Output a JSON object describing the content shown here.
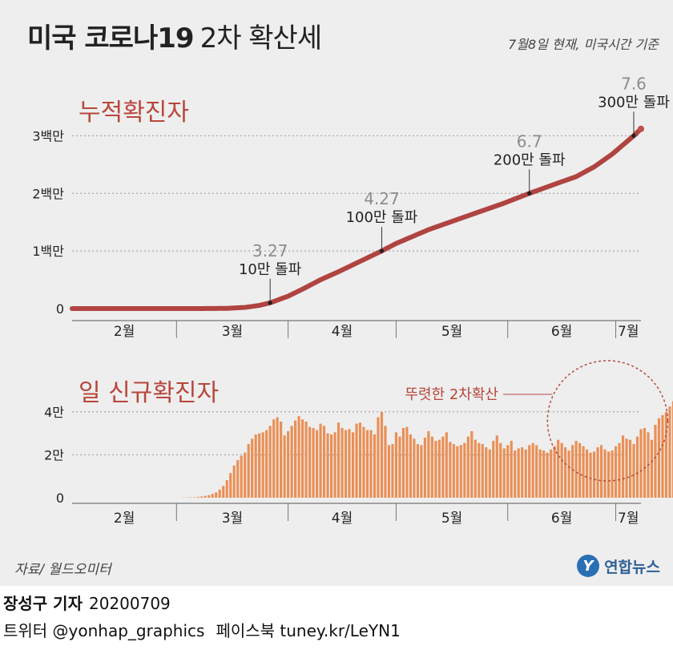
{
  "header": {
    "title_bold": "미국 코로나19",
    "title_light": "2차 확산세",
    "as_of": "7월8일 현재, 미국시간 기준"
  },
  "footer": {
    "source": "자료/ 월드오미터",
    "logo_mark": "Y",
    "logo_text": "연합뉴스",
    "reporter": "장성구 기자",
    "date": "20200709",
    "twitter": "트위터 @yonhap_graphics",
    "facebook": "페이스북 tuney.kr/LeYN1"
  },
  "colors": {
    "cumulative_line": "#c0504d",
    "daily_bars": "#ea8f55",
    "accent_text": "#b8463b",
    "milestone_number": "#8c8c8c",
    "panel_bg": "#eeeeee"
  },
  "chart_data": [
    {
      "type": "line",
      "title": "누적확진자",
      "unit": "명",
      "xlabel": "",
      "ylabel": "",
      "x_ticks": [
        "2월",
        "3월",
        "4월",
        "5월",
        "6월",
        "7월"
      ],
      "y_ticks": [
        {
          "value": 0,
          "label": "0"
        },
        {
          "value": 1000000,
          "label": "1백만"
        },
        {
          "value": 2000000,
          "label": "2백만"
        },
        {
          "value": 3000000,
          "label": "3백만"
        }
      ],
      "ylim": [
        0,
        3200000
      ],
      "x_range": [
        "2020-02-01",
        "2020-07-08"
      ],
      "grid": "horizontal-dashed",
      "milestones": [
        {
          "date": "2020-03-27",
          "value": 100000,
          "label": "10만 돌파",
          "date_label": "3.27"
        },
        {
          "date": "2020-04-27",
          "value": 1000000,
          "label": "100만 돌파",
          "date_label": "4.27"
        },
        {
          "date": "2020-06-07",
          "value": 2000000,
          "label": "200만 돌파",
          "date_label": "6.7"
        },
        {
          "date": "2020-07-06",
          "value": 3000000,
          "label": "300만 돌파",
          "date_label": "7.6"
        }
      ],
      "series": [
        {
          "points": [
            [
              "2020-02-01",
              8
            ],
            [
              "2020-02-15",
              15
            ],
            [
              "2020-03-01",
              80
            ],
            [
              "2020-03-08",
              550
            ],
            [
              "2020-03-15",
              3700
            ],
            [
              "2020-03-20",
              20000
            ],
            [
              "2020-03-24",
              55000
            ],
            [
              "2020-03-27",
              100000
            ],
            [
              "2020-04-01",
              215000
            ],
            [
              "2020-04-05",
              337000
            ],
            [
              "2020-04-10",
              500000
            ],
            [
              "2020-04-15",
              640000
            ],
            [
              "2020-04-20",
              790000
            ],
            [
              "2020-04-27",
              1000000
            ],
            [
              "2020-05-01",
              1130000
            ],
            [
              "2020-05-10",
              1370000
            ],
            [
              "2020-05-20",
              1590000
            ],
            [
              "2020-05-31",
              1830000
            ],
            [
              "2020-06-07",
              2000000
            ],
            [
              "2020-06-15",
              2180000
            ],
            [
              "2020-06-20",
              2290000
            ],
            [
              "2020-06-25",
              2460000
            ],
            [
              "2020-06-30",
              2680000
            ],
            [
              "2020-07-03",
              2840000
            ],
            [
              "2020-07-06",
              3000000
            ],
            [
              "2020-07-08",
              3120000
            ]
          ]
        }
      ]
    },
    {
      "type": "bar",
      "title": "일 신규확진자",
      "unit": "명",
      "xlabel": "",
      "ylabel": "",
      "x_ticks": [
        "2월",
        "3월",
        "4월",
        "5월",
        "6월",
        "7월"
      ],
      "y_ticks": [
        {
          "value": 0,
          "label": "0"
        },
        {
          "value": 20000,
          "label": "2만"
        },
        {
          "value": 40000,
          "label": "4만"
        }
      ],
      "ylim": [
        0,
        62000
      ],
      "x_range": [
        "2020-02-01",
        "2020-07-08"
      ],
      "grid": "horizontal-dashed",
      "annotation": {
        "label": "뚜렷한 2차확산",
        "shape": "dashed-circle",
        "period": [
          "2020-06-15",
          "2020-07-08"
        ]
      },
      "series": [
        {
          "start": "2020-03-01",
          "values": [
            20,
            30,
            60,
            90,
            140,
            200,
            400,
            600,
            900,
            1200,
            1800,
            2500,
            3800,
            5500,
            8200,
            11500,
            15000,
            17500,
            19500,
            21000,
            25000,
            27500,
            29500,
            30000,
            30500,
            31500,
            33500,
            36500,
            37500,
            35500,
            29000,
            31000,
            33500,
            36000,
            38000,
            36500,
            35500,
            33000,
            32500,
            31500,
            34500,
            33500,
            30000,
            29500,
            30500,
            35000,
            32500,
            31500,
            32000,
            30500,
            34500,
            35000,
            33000,
            31500,
            31500,
            29500,
            37500,
            40000,
            33500,
            24500,
            25000,
            30500,
            28500,
            32500,
            33000,
            29500,
            27500,
            25000,
            24500,
            28000,
            31000,
            28500,
            26500,
            27000,
            28500,
            30500,
            26000,
            25000,
            24000,
            24500,
            25500,
            28500,
            31000,
            27000,
            25500,
            25000,
            23500,
            22500,
            26500,
            29000,
            25500,
            23000,
            24500,
            26500,
            22000,
            23000,
            23500,
            22500,
            24500,
            25500,
            24500,
            22500,
            22000,
            21000,
            22500,
            24000,
            27000,
            25500,
            23500,
            22000,
            24500,
            26500,
            25500,
            24000,
            22500,
            21000,
            21500,
            23500,
            24500,
            22500,
            21500,
            22000,
            24000,
            25500,
            29000,
            27500,
            27000,
            25000,
            28500,
            32000,
            32500,
            30500,
            27000,
            34000,
            37000,
            38500,
            40000,
            42500,
            45000,
            42000,
            40500,
            48500,
            51500,
            52000,
            49500,
            45000,
            51000,
            56500,
            57500,
            55000,
            48500,
            51500,
            59500
          ]
        }
      ]
    }
  ]
}
